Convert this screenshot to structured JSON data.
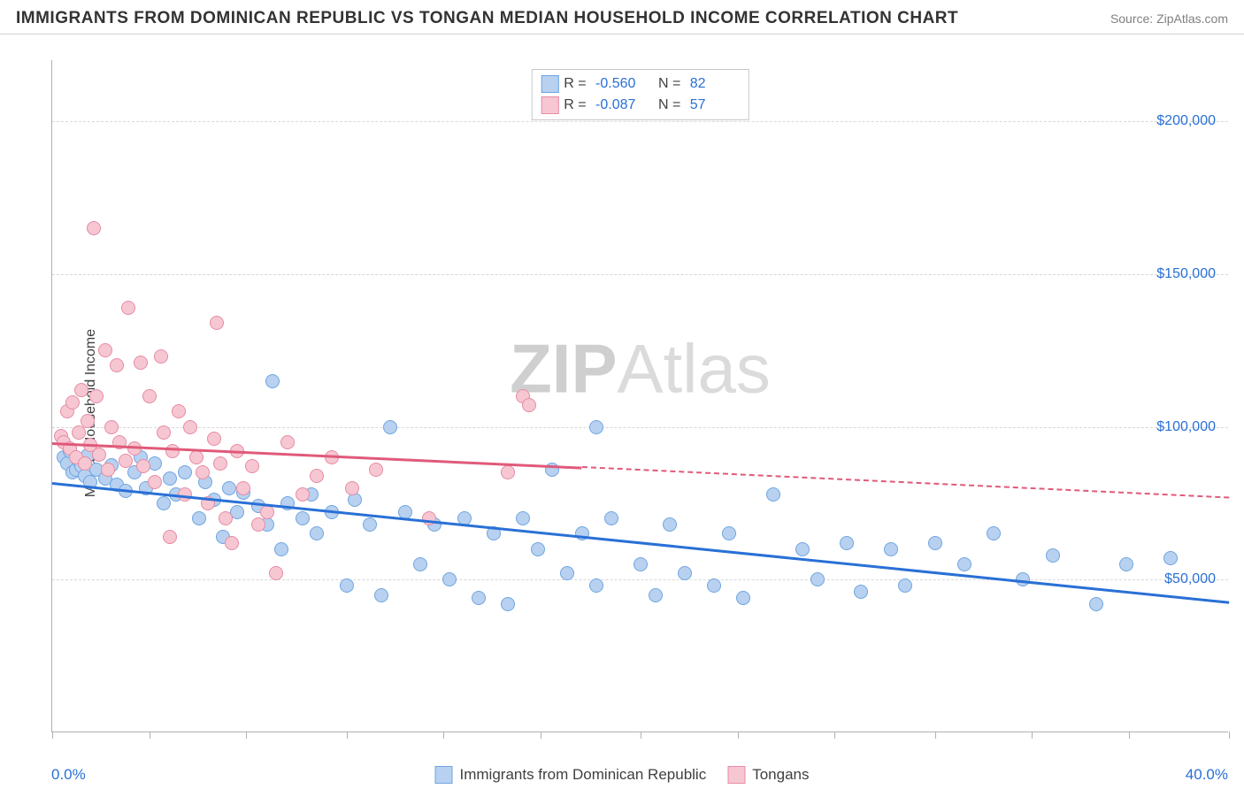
{
  "title": "IMMIGRANTS FROM DOMINICAN REPUBLIC VS TONGAN MEDIAN HOUSEHOLD INCOME CORRELATION CHART",
  "source_label": "Source: ZipAtlas.com",
  "watermark_bold": "ZIP",
  "watermark_light": "Atlas",
  "chart": {
    "type": "scatter",
    "ylabel": "Median Household Income",
    "xlim": [
      0,
      40
    ],
    "ylim": [
      0,
      220000
    ],
    "x_tick_positions": [
      0,
      3.3,
      6.6,
      10,
      13.3,
      16.6,
      20,
      23.3,
      26.6,
      30,
      33.3,
      36.6,
      40
    ],
    "x_axis_start_label": "0.0%",
    "x_axis_end_label": "40.0%",
    "y_ticks": [
      50000,
      100000,
      150000,
      200000
    ],
    "y_tick_labels": [
      "$50,000",
      "$100,000",
      "$150,000",
      "$200,000"
    ],
    "grid_color": "#d8d8d8",
    "background_color": "#ffffff",
    "axis_color": "#b0b0b0",
    "tick_label_color": "#2970d6",
    "marker_radius": 8,
    "series": [
      {
        "name": "Immigrants from Dominican Republic",
        "fill": "#b8d1f0",
        "stroke": "#6fa5e0",
        "trend_color": "#2970d6",
        "trend_width": 2.5,
        "trend_x_range": [
          0,
          40
        ],
        "trend_y_range": [
          82000,
          43000
        ],
        "R": "-0.560",
        "N": "82",
        "points": [
          [
            0.4,
            90000
          ],
          [
            0.5,
            88000
          ],
          [
            0.6,
            92000
          ],
          [
            0.7,
            85000
          ],
          [
            0.8,
            86000
          ],
          [
            0.9,
            89000
          ],
          [
            1.0,
            87000
          ],
          [
            1.1,
            84000
          ],
          [
            1.2,
            90500
          ],
          [
            1.3,
            82000
          ],
          [
            1.5,
            86000
          ],
          [
            1.8,
            83000
          ],
          [
            2.0,
            87500
          ],
          [
            2.2,
            81000
          ],
          [
            2.5,
            79000
          ],
          [
            2.8,
            85000
          ],
          [
            3.0,
            90000
          ],
          [
            3.2,
            80000
          ],
          [
            3.5,
            88000
          ],
          [
            3.8,
            75000
          ],
          [
            4.0,
            83000
          ],
          [
            4.2,
            78000
          ],
          [
            4.5,
            85000
          ],
          [
            5.0,
            70000
          ],
          [
            5.2,
            82000
          ],
          [
            5.5,
            76000
          ],
          [
            5.8,
            64000
          ],
          [
            6.0,
            80000
          ],
          [
            6.3,
            72000
          ],
          [
            6.5,
            78500
          ],
          [
            7.0,
            74000
          ],
          [
            7.3,
            68000
          ],
          [
            7.5,
            115000
          ],
          [
            7.8,
            60000
          ],
          [
            8.0,
            75000
          ],
          [
            8.5,
            70000
          ],
          [
            8.8,
            78000
          ],
          [
            9.0,
            65000
          ],
          [
            9.5,
            72000
          ],
          [
            10.0,
            48000
          ],
          [
            10.3,
            76000
          ],
          [
            10.8,
            68000
          ],
          [
            11.2,
            45000
          ],
          [
            11.5,
            100000
          ],
          [
            12.0,
            72000
          ],
          [
            12.5,
            55000
          ],
          [
            13.0,
            68000
          ],
          [
            13.5,
            50000
          ],
          [
            14.0,
            70000
          ],
          [
            14.5,
            44000
          ],
          [
            15.0,
            65000
          ],
          [
            15.5,
            42000
          ],
          [
            16.0,
            70000
          ],
          [
            16.5,
            60000
          ],
          [
            17.0,
            86000
          ],
          [
            17.5,
            52000
          ],
          [
            18.0,
            65000
          ],
          [
            18.5,
            48000
          ],
          [
            18.5,
            100000
          ],
          [
            19.0,
            70000
          ],
          [
            20.0,
            55000
          ],
          [
            20.5,
            45000
          ],
          [
            21.0,
            68000
          ],
          [
            21.5,
            52000
          ],
          [
            22.5,
            48000
          ],
          [
            23.0,
            65000
          ],
          [
            23.5,
            44000
          ],
          [
            24.5,
            78000
          ],
          [
            25.5,
            60000
          ],
          [
            26.0,
            50000
          ],
          [
            27.0,
            62000
          ],
          [
            27.5,
            46000
          ],
          [
            28.5,
            60000
          ],
          [
            29.0,
            48000
          ],
          [
            30.0,
            62000
          ],
          [
            31.0,
            55000
          ],
          [
            32.0,
            65000
          ],
          [
            33.0,
            50000
          ],
          [
            34.0,
            58000
          ],
          [
            35.5,
            42000
          ],
          [
            36.5,
            55000
          ],
          [
            38.0,
            57000
          ]
        ]
      },
      {
        "name": "Tongans",
        "fill": "#f6c7d2",
        "stroke": "#e68ba2",
        "trend_color": "#e05a7a",
        "trend_width": 2.5,
        "trend_x_range": [
          0,
          18
        ],
        "trend_y_range": [
          95000,
          87000
        ],
        "trend_dash_x_range": [
          18,
          40
        ],
        "trend_dash_y_range": [
          87000,
          77000
        ],
        "R": "-0.087",
        "N": "57",
        "points": [
          [
            0.3,
            97000
          ],
          [
            0.4,
            95000
          ],
          [
            0.5,
            105000
          ],
          [
            0.6,
            93000
          ],
          [
            0.7,
            108000
          ],
          [
            0.8,
            90000
          ],
          [
            0.9,
            98000
          ],
          [
            1.0,
            112000
          ],
          [
            1.1,
            88000
          ],
          [
            1.2,
            102000
          ],
          [
            1.3,
            94000
          ],
          [
            1.4,
            165000
          ],
          [
            1.5,
            110000
          ],
          [
            1.6,
            91000
          ],
          [
            1.8,
            125000
          ],
          [
            1.9,
            86000
          ],
          [
            2.0,
            100000
          ],
          [
            2.2,
            120000
          ],
          [
            2.3,
            95000
          ],
          [
            2.5,
            89000
          ],
          [
            2.6,
            139000
          ],
          [
            2.8,
            93000
          ],
          [
            3.0,
            121000
          ],
          [
            3.1,
            87000
          ],
          [
            3.3,
            110000
          ],
          [
            3.5,
            82000
          ],
          [
            3.7,
            123000
          ],
          [
            3.8,
            98000
          ],
          [
            4.0,
            64000
          ],
          [
            4.1,
            92000
          ],
          [
            4.3,
            105000
          ],
          [
            4.5,
            78000
          ],
          [
            4.7,
            100000
          ],
          [
            4.9,
            90000
          ],
          [
            5.1,
            85000
          ],
          [
            5.3,
            75000
          ],
          [
            5.5,
            96000
          ],
          [
            5.6,
            134000
          ],
          [
            5.7,
            88000
          ],
          [
            5.9,
            70000
          ],
          [
            6.1,
            62000
          ],
          [
            6.3,
            92000
          ],
          [
            6.5,
            80000
          ],
          [
            6.8,
            87000
          ],
          [
            7.0,
            68000
          ],
          [
            7.3,
            72000
          ],
          [
            7.6,
            52000
          ],
          [
            8.0,
            95000
          ],
          [
            8.5,
            78000
          ],
          [
            9.0,
            84000
          ],
          [
            9.5,
            90000
          ],
          [
            10.2,
            80000
          ],
          [
            11.0,
            86000
          ],
          [
            12.8,
            70000
          ],
          [
            15.5,
            85000
          ],
          [
            16.0,
            110000
          ],
          [
            16.2,
            107000
          ]
        ]
      }
    ],
    "legend_top": {
      "R_label": "R",
      "N_label": "N",
      "eq": " = "
    },
    "legend_bottom_labels": [
      "Immigrants from Dominican Republic",
      "Tongans"
    ]
  }
}
